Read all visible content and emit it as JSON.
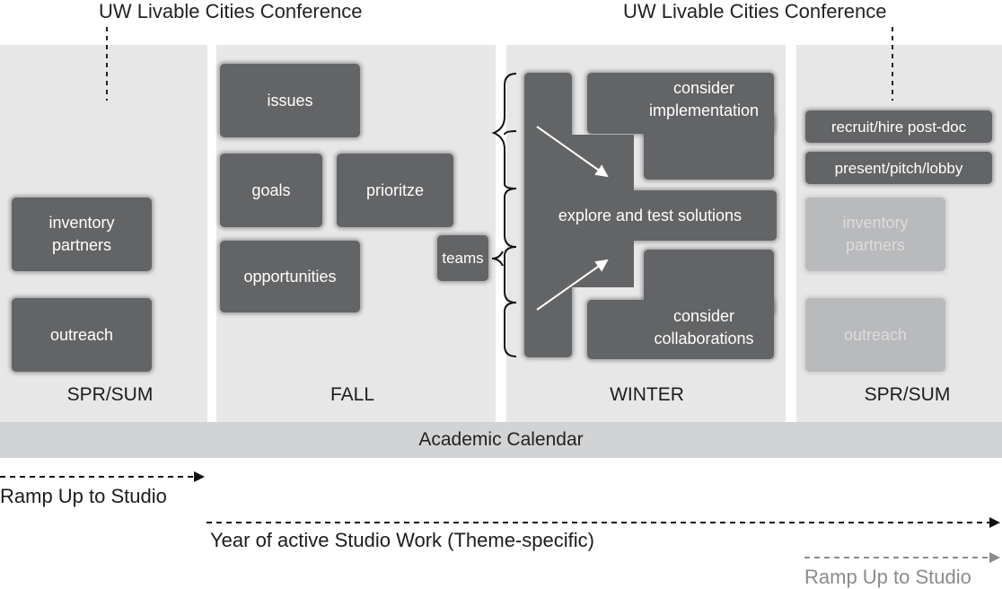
{
  "conference": {
    "left": "UW Livable Cities Conference",
    "right": "UW Livable Cities Conference"
  },
  "seasons": {
    "spr_sum_1": "SPR/SUM",
    "fall": "FALL",
    "winter": "WINTER",
    "spr_sum_2": "SPR/SUM"
  },
  "spr_sum_1_boxes": {
    "inventory_partners": "inventory\npartners",
    "outreach": "outreach"
  },
  "fall_boxes": {
    "issues": "issues",
    "goals": "goals",
    "prioritze": "prioritze",
    "opportunities": "opportunities",
    "teams": "teams"
  },
  "winter_boxes": {
    "consider_implementation": "consider\nimplementation",
    "explore": "explore and test solutions",
    "consider_collaborations": "consider\ncollaborations"
  },
  "spr_sum_2_boxes": {
    "recruit": "recruit/hire post-doc",
    "present": "present/pitch/lobby",
    "inventory_partners": "inventory\npartners",
    "outreach": "outreach"
  },
  "calendar": "Academic Calendar",
  "timelines": {
    "ramp_up_1": "Ramp Up to Studio",
    "year_active": "Year of active Studio Work (Theme-specific)",
    "ramp_up_2": "Ramp Up to Studio"
  },
  "colors": {
    "column_bg": "#e7e7e8",
    "box_dark": "#636466",
    "box_faded": "#b9babc",
    "calendar_bar": "#d2d3d4"
  }
}
